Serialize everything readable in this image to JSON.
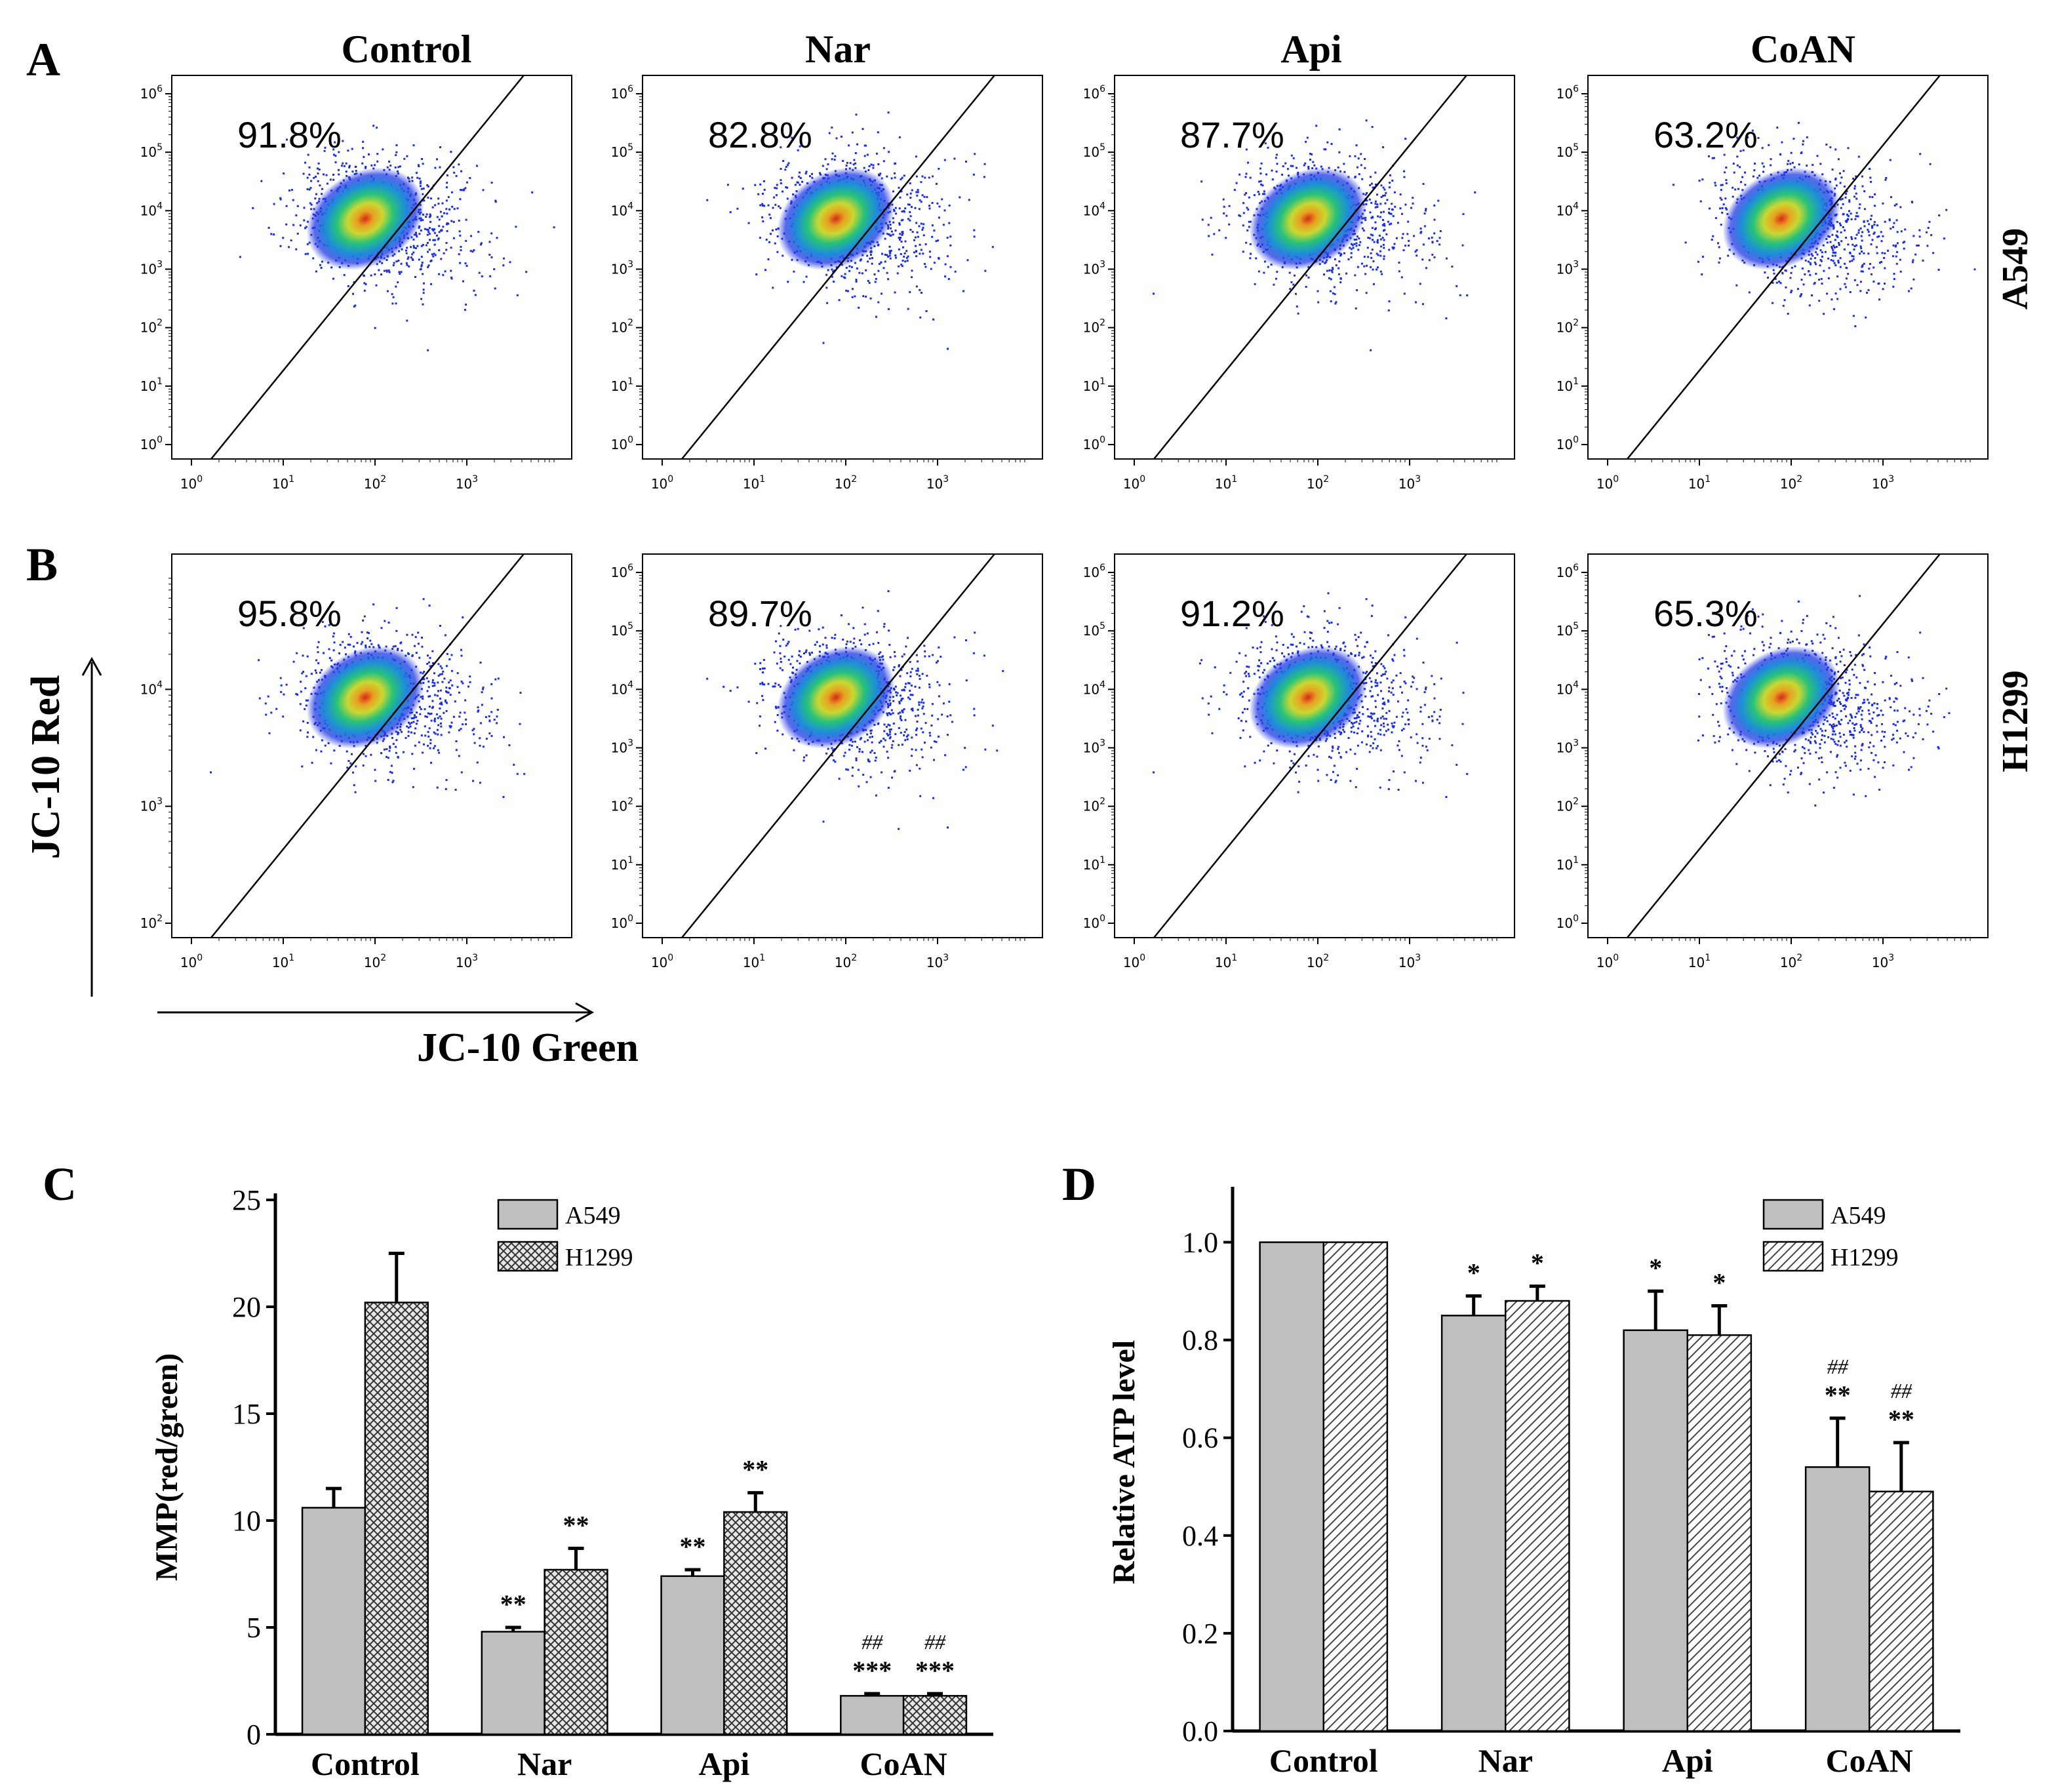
{
  "figure": {
    "columns": [
      "Control",
      "Nar",
      "Api",
      "CoAN"
    ],
    "panel_a": {
      "letter": "A",
      "cell_line": "A549",
      "percentages": [
        "91.8%",
        "82.8%",
        "87.7%",
        "63.2%"
      ]
    },
    "panel_b": {
      "letter": "B",
      "cell_line": "H1299",
      "percentages": [
        "95.8%",
        "89.7%",
        "91.2%",
        "65.3%"
      ]
    },
    "x_axis_label": "JC-10 Green",
    "y_axis_label": "JC-10 Red",
    "log_tick_base": "10",
    "dense_color": "#d42a1a",
    "mid_color": "#27c27a",
    "sparse_color": "#1a2ee0"
  },
  "chart_data": [
    {
      "panel": "A",
      "type": "scatter",
      "title": "Control",
      "row_label": "A549",
      "gated_percent": 91.8,
      "xscale": "log",
      "yscale": "log",
      "xlim": [
        1,
        10000
      ],
      "ylim": [
        1,
        1000000
      ],
      "x_ticks": [
        "10^0",
        "10^1",
        "10^2",
        "10^3"
      ],
      "y_ticks": [
        "10^0",
        "10^1",
        "10^2",
        "10^3",
        "10^4",
        "10^5",
        "10^6"
      ]
    },
    {
      "panel": "A",
      "type": "scatter",
      "title": "Nar",
      "row_label": "A549",
      "gated_percent": 82.8,
      "xscale": "log",
      "yscale": "log"
    },
    {
      "panel": "A",
      "type": "scatter",
      "title": "Api",
      "row_label": "A549",
      "gated_percent": 87.7,
      "xscale": "log",
      "yscale": "log"
    },
    {
      "panel": "A",
      "type": "scatter",
      "title": "CoAN",
      "row_label": "A549",
      "gated_percent": 63.2,
      "xscale": "log",
      "yscale": "log"
    },
    {
      "panel": "B",
      "type": "scatter",
      "title": "Control",
      "row_label": "H1299",
      "gated_percent": 95.8,
      "xscale": "log",
      "yscale": "log"
    },
    {
      "panel": "B",
      "type": "scatter",
      "title": "Nar",
      "row_label": "H1299",
      "gated_percent": 89.7,
      "xscale": "log",
      "yscale": "log"
    },
    {
      "panel": "B",
      "type": "scatter",
      "title": "Api",
      "row_label": "H1299",
      "gated_percent": 91.2,
      "xscale": "log",
      "yscale": "log"
    },
    {
      "panel": "B",
      "type": "scatter",
      "title": "CoAN",
      "row_label": "H1299",
      "gated_percent": 65.3,
      "xscale": "log",
      "yscale": "log"
    },
    {
      "panel": "C",
      "type": "bar",
      "ylabel": "MMP(red/green)",
      "xlabel": "",
      "ylim": [
        0,
        25
      ],
      "yticks": [
        0,
        5,
        10,
        15,
        20,
        25
      ],
      "categories": [
        "Control",
        "Nar",
        "Api",
        "CoAN"
      ],
      "series": [
        {
          "name": "A549",
          "pattern": "solid-gray",
          "values": [
            10.6,
            4.8,
            7.4,
            1.8
          ],
          "errors": [
            0.9,
            0.2,
            0.3,
            0.1
          ]
        },
        {
          "name": "H1299",
          "pattern": "crosshatch",
          "values": [
            20.2,
            7.7,
            10.4,
            1.8
          ],
          "errors": [
            2.3,
            1.0,
            0.9,
            0.1
          ]
        }
      ],
      "significance": {
        "A549": [
          "",
          "**",
          "**",
          "***"
        ],
        "H1299": [
          "",
          "**",
          "**",
          "***"
        ]
      },
      "hash_marks": {
        "A549": [
          "",
          "",
          "",
          "##"
        ],
        "H1299": [
          "",
          "",
          "",
          "##"
        ]
      }
    },
    {
      "panel": "D",
      "type": "bar",
      "ylabel": "Relative ATP level",
      "xlabel": "",
      "ylim": [
        0,
        1.1
      ],
      "yticks": [
        "0.0",
        "0.2",
        "0.4",
        "0.6",
        "0.8",
        "1.0"
      ],
      "categories": [
        "Control",
        "Nar",
        "Api",
        "CoAN"
      ],
      "series": [
        {
          "name": "A549",
          "pattern": "solid-gray",
          "values": [
            1.0,
            0.85,
            0.82,
            0.54
          ],
          "errors": [
            0,
            0.04,
            0.08,
            0.1
          ]
        },
        {
          "name": "H1299",
          "pattern": "diagonal",
          "values": [
            1.0,
            0.88,
            0.81,
            0.49
          ],
          "errors": [
            0,
            0.03,
            0.06,
            0.1
          ]
        }
      ],
      "significance": {
        "A549": [
          "",
          "*",
          "*",
          "**"
        ],
        "H1299": [
          "",
          "*",
          "*",
          "**"
        ]
      },
      "hash_marks": {
        "A549": [
          "",
          "",
          "",
          "##"
        ],
        "H1299": [
          "",
          "",
          "",
          "##"
        ]
      }
    }
  ]
}
